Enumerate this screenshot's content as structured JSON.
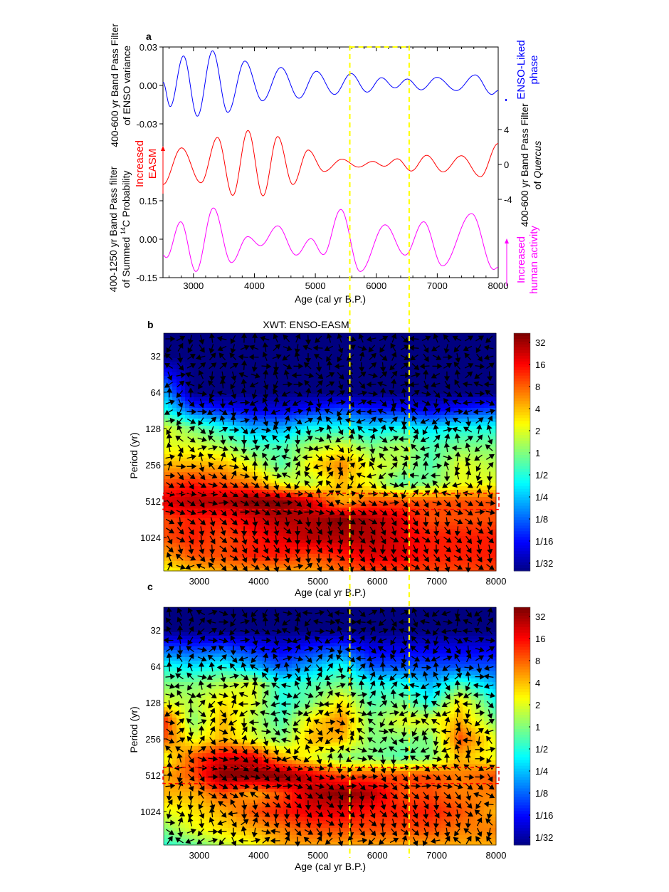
{
  "figure": {
    "panel_labels": [
      "a",
      "b",
      "c"
    ]
  },
  "chart_data": [
    {
      "type": "line",
      "panel": "a",
      "xlabel": "Age (cal yr B.P.)",
      "xlim": [
        2500,
        8000
      ],
      "xticks": [
        3000,
        4000,
        5000,
        6000,
        7000,
        8000
      ],
      "highlight_ages": [
        5500,
        6500
      ],
      "series": [
        {
          "name": "400-600 yr band pass filter of ENSO variance",
          "color": "#0000ff",
          "axis_side": "left",
          "ylabel_lines": [
            "400-600 yr Band Pass Filter",
            "of  ENSO variance"
          ],
          "ylim": [
            -0.03,
            0.03
          ],
          "yticks": [
            0.03,
            0.0,
            -0.03
          ],
          "ytick_labels": [
            "0.03",
            "0.00",
            "-0.03"
          ],
          "annotation_lines": [
            "ENSO-Liked",
            "phase"
          ],
          "x": [
            2500,
            2618,
            2836,
            3064,
            3314,
            3564,
            3845,
            4132,
            4436,
            4732,
            5018,
            5314,
            5586,
            5850,
            6086,
            6305,
            6509,
            6736,
            6995,
            7314,
            7623,
            7895,
            8000
          ],
          "y": [
            0.0026,
            -0.0165,
            0.023,
            -0.024,
            0.027,
            -0.021,
            0.019,
            -0.012,
            0.014,
            -0.01,
            0.011,
            -0.007,
            0.0093,
            -0.0052,
            0.006,
            -0.0019,
            0.005,
            -0.0034,
            0.0063,
            -0.004,
            0.0082,
            -0.007,
            -0.004
          ]
        },
        {
          "name": "400-600 yr band pass filter of Quercus",
          "color": "#ff0000",
          "axis_side": "right",
          "ylabel_lines": [
            "400-600 yr Band Pass Filter",
            "of ",
            "Quercus"
          ],
          "ylim": [
            -4,
            4
          ],
          "yticks": [
            4,
            0,
            -4
          ],
          "ytick_labels": [
            "4",
            "0",
            "-4"
          ],
          "annotation_lines": [
            "Increased",
            "EASM"
          ],
          "x": [
            2500,
            2805,
            3123,
            3395,
            3645,
            3895,
            4141,
            4382,
            4632,
            4882,
            5145,
            5436,
            5709,
            5941,
            6132,
            6345,
            6573,
            6827,
            7095,
            7395,
            7709,
            8000
          ],
          "y": [
            -2.3,
            1.9,
            -2.1,
            3.1,
            -3.55,
            3.9,
            -3.6,
            3.2,
            -2.3,
            1.65,
            -0.8,
            0.6,
            -0.3,
            0.35,
            -0.2,
            0.65,
            -0.75,
            1.05,
            -0.85,
            1.0,
            -1.4,
            2.4
          ]
        },
        {
          "name": "400-1250 yr band pass filter of summed 14C probability",
          "color": "#ff00ff",
          "axis_side": "left",
          "ylabel_lines": [
            "400-1250 yr  Band Pass filter",
            "of Summed ",
            "14",
            "C Probability"
          ],
          "ylim": [
            -0.15,
            0.15
          ],
          "yticks": [
            0.15,
            0.0,
            -0.15
          ],
          "ytick_labels": [
            "0.15",
            "0.00",
            "-0.15"
          ],
          "annotation_lines": [
            "Increased",
            "human activity"
          ],
          "x": [
            2500,
            2555,
            2791,
            3041,
            3327,
            3623,
            3891,
            4100,
            4382,
            4686,
            4927,
            5132,
            5418,
            5736,
            6145,
            6473,
            6777,
            7086,
            7564,
            7927,
            8000
          ],
          "y": [
            -0.062,
            -0.072,
            0.068,
            -0.126,
            0.122,
            -0.091,
            0.01,
            -0.025,
            0.052,
            -0.062,
            0.002,
            -0.06,
            0.116,
            -0.126,
            0.056,
            -0.062,
            0.068,
            -0.104,
            0.1,
            -0.118,
            -0.109
          ]
        }
      ]
    },
    {
      "type": "heatmap",
      "panel": "b",
      "title": "XWT: ENSO-EASM",
      "xlabel": "Age (cal yr B.P.)",
      "ylabel": "Period (yr)",
      "xlim": [
        2400,
        8000
      ],
      "xticks": [
        3000,
        4000,
        5000,
        6000,
        7000,
        8000
      ],
      "yticks": [
        32,
        64,
        128,
        256,
        512,
        1024
      ],
      "highlight_band_period": [
        440,
        600
      ],
      "colorbar": {
        "ticks": [
          "32",
          "16",
          "8",
          "4",
          "2",
          "1",
          "1/2",
          "1/4",
          "1/8",
          "1/16",
          "1/32"
        ],
        "range_log2": [
          -5,
          5
        ]
      },
      "grid": {
        "x": [
          2400,
          2900,
          3400,
          3900,
          4400,
          4900,
          5400,
          5900,
          6400,
          6900,
          7400,
          8000
        ],
        "periods": [
          16,
          32,
          64,
          90,
          128,
          180,
          256,
          362,
          512,
          724,
          1024,
          1448,
          2048
        ],
        "log2_power": [
          [
            -5,
            -5,
            -5,
            -5,
            -5,
            -5,
            -5,
            -5,
            -5,
            -5,
            -5,
            -5
          ],
          [
            -5,
            -5,
            -5,
            -5,
            -5,
            -5,
            -5,
            -5,
            -5,
            -5,
            -5,
            -5
          ],
          [
            -2,
            -5,
            -5,
            -5,
            -5,
            -5,
            -5,
            -5,
            -5,
            -5,
            -5,
            -5
          ],
          [
            -1,
            -3,
            -3.5,
            -4,
            -4,
            -3.5,
            -3,
            -3.5,
            -3.5,
            -4,
            -3.5,
            -3
          ],
          [
            1,
            0,
            -1,
            -2,
            -2,
            -1,
            -1,
            -1.5,
            -1,
            -1.5,
            -1,
            -1
          ],
          [
            1,
            1,
            0.5,
            -0.5,
            -0.5,
            0.5,
            1,
            0,
            0.5,
            -0.5,
            0,
            0
          ],
          [
            2,
            2,
            2,
            1,
            -0.5,
            1.5,
            2.5,
            1,
            0.5,
            -0.5,
            1,
            0.5
          ],
          [
            3,
            3.5,
            3,
            2.5,
            1,
            0.5,
            2,
            1,
            -0.5,
            0,
            1,
            1
          ],
          [
            4,
            4.5,
            4.5,
            5,
            5,
            4,
            2,
            3,
            3,
            3,
            3,
            3
          ],
          [
            3,
            3.5,
            3.5,
            4,
            4.5,
            4.5,
            5,
            4.5,
            4,
            3,
            3,
            3
          ],
          [
            3,
            3.5,
            3,
            3.5,
            4,
            4.5,
            4.5,
            4.5,
            4,
            3.5,
            3.5,
            3.5
          ],
          [
            2,
            3,
            3,
            3.5,
            3.5,
            3,
            3.5,
            4,
            4,
            3.5,
            3.5,
            3.5
          ],
          [
            1,
            1.5,
            2,
            2,
            2,
            2,
            2.5,
            3,
            3,
            3,
            3,
            3
          ]
        ]
      }
    },
    {
      "type": "heatmap",
      "panel": "c",
      "title": "",
      "xlabel": "Age (cal yr B.P.)",
      "ylabel": "Period (yr)",
      "xlim": [
        2400,
        8000
      ],
      "xticks": [
        3000,
        4000,
        5000,
        6000,
        7000,
        8000
      ],
      "yticks": [
        32,
        64,
        128,
        256,
        512,
        1024
      ],
      "highlight_band_period": [
        440,
        600
      ],
      "colorbar": {
        "ticks": [
          "32",
          "16",
          "8",
          "4",
          "2",
          "1",
          "1/2",
          "1/4",
          "1/8",
          "1/16",
          "1/32"
        ],
        "range_log2": [
          -5,
          5
        ]
      },
      "grid": {
        "x": [
          2400,
          2900,
          3400,
          3900,
          4400,
          4900,
          5400,
          5900,
          6400,
          6900,
          7400,
          8000
        ],
        "periods": [
          16,
          32,
          64,
          90,
          128,
          180,
          256,
          362,
          512,
          724,
          1024,
          1448,
          2048
        ],
        "log2_power": [
          [
            -5,
            -5,
            -5,
            -5,
            -5,
            -5,
            -5,
            -5,
            -5,
            -5,
            -5,
            -5
          ],
          [
            -5,
            -5,
            -5,
            -5,
            -5,
            -5,
            -5,
            -5,
            -5,
            -5,
            -5,
            -5
          ],
          [
            -1,
            -1.5,
            -1,
            -2,
            -3,
            -2,
            -1,
            -3,
            -3,
            -3,
            -3,
            -3
          ],
          [
            0,
            0,
            0.5,
            1,
            -1,
            -0.5,
            0,
            -1,
            -1,
            -2,
            -0.5,
            -2
          ],
          [
            1,
            0.5,
            1.5,
            1,
            -1,
            0,
            1.5,
            -0.5,
            0,
            -1,
            1.5,
            -1
          ],
          [
            3.5,
            0,
            2,
            0.5,
            -0.5,
            1.5,
            2.5,
            0,
            1,
            1,
            2,
            0
          ],
          [
            3,
            1,
            2,
            1,
            0,
            2,
            2,
            0,
            0,
            0,
            3,
            1
          ],
          [
            1,
            3,
            4,
            4,
            2,
            1,
            0,
            0,
            -0.5,
            0,
            2,
            1
          ],
          [
            2,
            3,
            5,
            5,
            5,
            4,
            3,
            3,
            3,
            3,
            2.5,
            3
          ],
          [
            2,
            2,
            3,
            2,
            3,
            4.5,
            5,
            4.5,
            3,
            3,
            2.5,
            2.5
          ],
          [
            1,
            1.5,
            2,
            3,
            3.5,
            4,
            4,
            3.5,
            3.5,
            3.5,
            3,
            2
          ],
          [
            0,
            1,
            1.5,
            2,
            2.5,
            3,
            3,
            3,
            3,
            3,
            2.5,
            2.5
          ],
          [
            -1,
            -0.5,
            0.5,
            1,
            2,
            2,
            2,
            2,
            2,
            2,
            2,
            2
          ]
        ]
      }
    }
  ]
}
